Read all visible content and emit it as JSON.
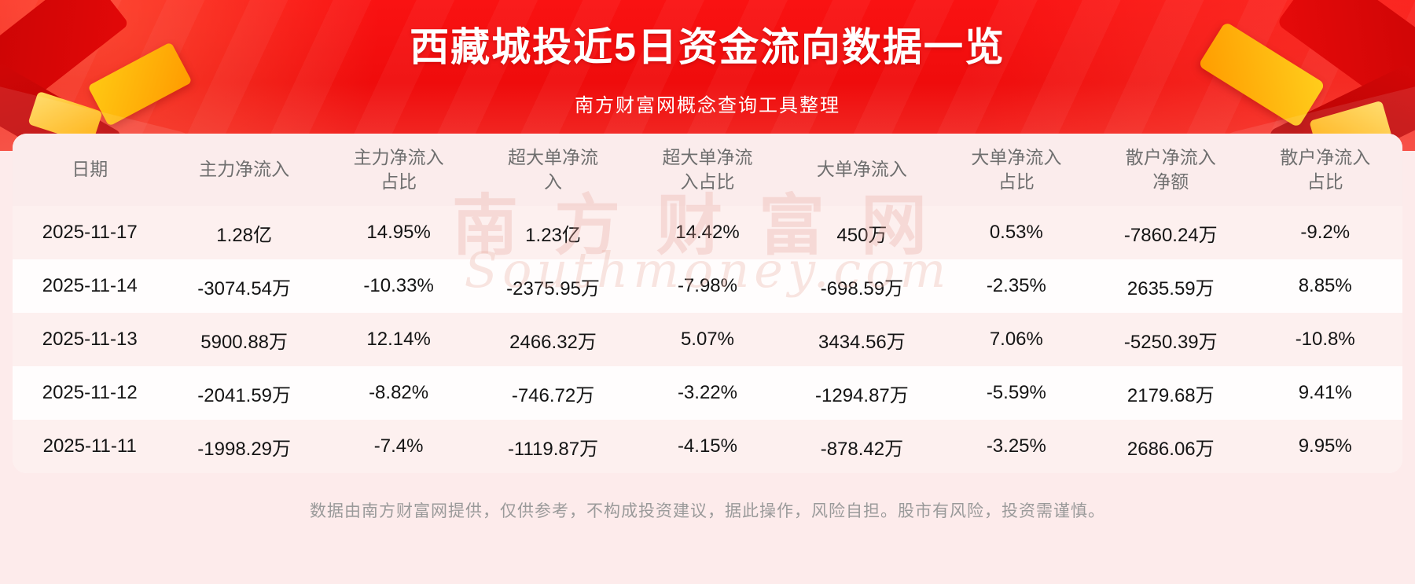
{
  "header": {
    "title": "西藏城投近5日资金流向数据一览",
    "subtitle": "南方财富网概念查询工具整理"
  },
  "chart_data": {
    "type": "table",
    "title": "西藏城投近5日资金流向数据一览",
    "columns": [
      "日期",
      "主力净流入",
      "主力净流入占比",
      "超大单净流入",
      "超大单净流入占比",
      "大单净流入",
      "大单净流入占比",
      "散户净流入净额",
      "散户净流入占比"
    ],
    "rows": [
      [
        "2025-11-17",
        "1.28亿",
        "14.95%",
        "1.23亿",
        "14.42%",
        "450万",
        "0.53%",
        "-7860.24万",
        "-9.2%"
      ],
      [
        "2025-11-14",
        "-3074.54万",
        "-10.33%",
        "-2375.95万",
        "-7.98%",
        "-698.59万",
        "-2.35%",
        "2635.59万",
        "8.85%"
      ],
      [
        "2025-11-13",
        "5900.88万",
        "12.14%",
        "2466.32万",
        "5.07%",
        "3434.56万",
        "7.06%",
        "-5250.39万",
        "-10.8%"
      ],
      [
        "2025-11-12",
        "-2041.59万",
        "-8.82%",
        "-746.72万",
        "-3.22%",
        "-1294.87万",
        "-5.59%",
        "2179.68万",
        "9.41%"
      ],
      [
        "2025-11-11",
        "-1998.29万",
        "-7.4%",
        "-1119.87万",
        "-4.15%",
        "-878.42万",
        "-3.25%",
        "2686.06万",
        "9.95%"
      ]
    ]
  },
  "watermark": {
    "line1": "南方财富网",
    "line2": "Southmoney.com"
  },
  "footer": {
    "disclaimer": "数据由南方财富网提供，仅供参考，不构成投资建议，据此操作，风险自担。股市有风险，投资需谨慎。"
  },
  "colors": {
    "banner_red": "#f01010",
    "gold_accent": "#ffb300",
    "row_alt_pink": "#fdf0ef",
    "page_pink": "#fdebeb",
    "header_text_gray": "#6f6f6f",
    "footer_gray": "#9a9a9a"
  }
}
